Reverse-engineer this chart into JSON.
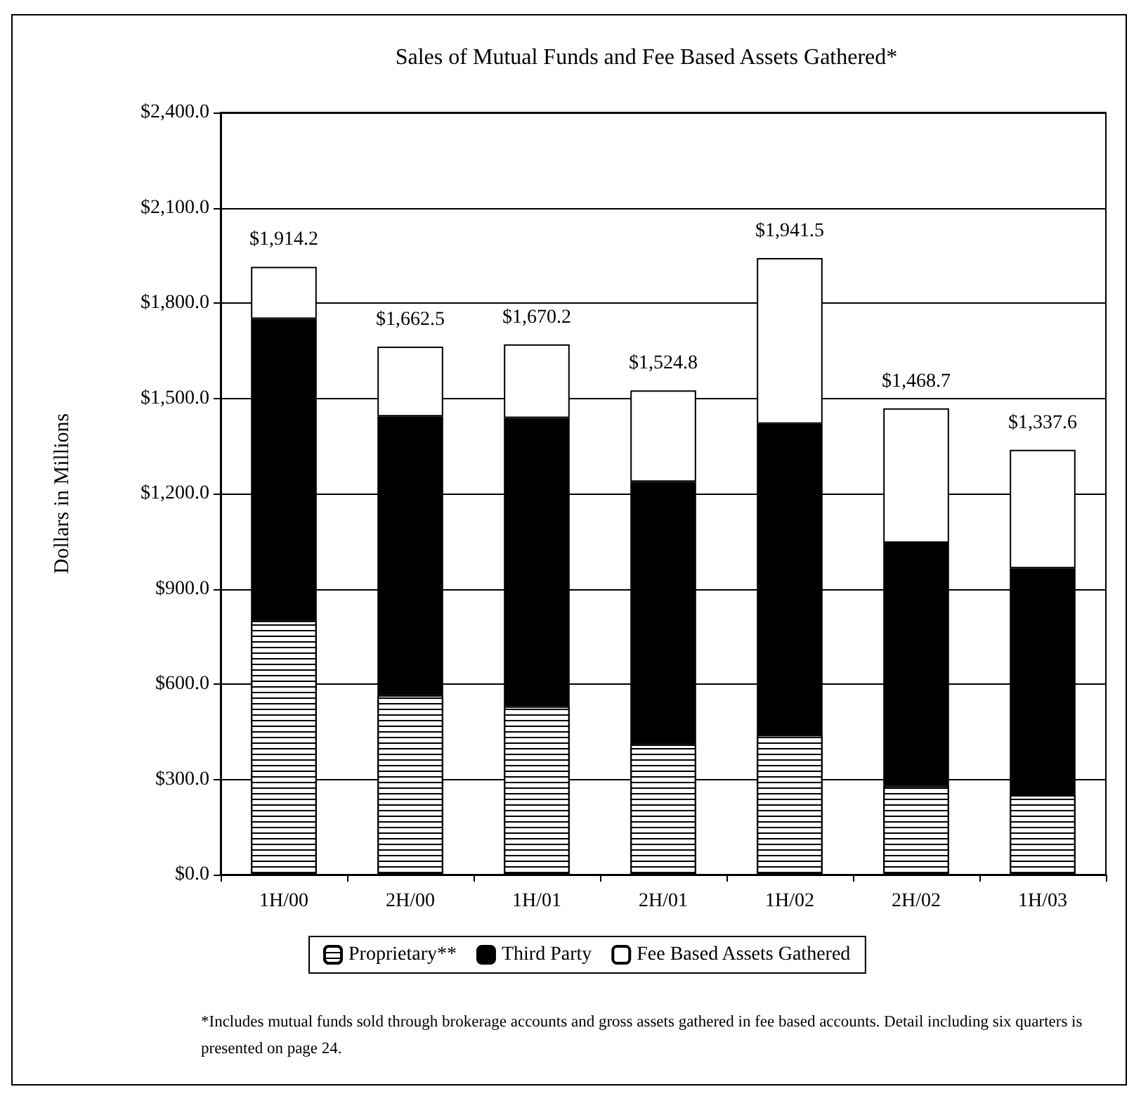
{
  "chart_data": {
    "type": "bar",
    "title": "Sales of Mutual Funds and Fee Based Assets Gathered*",
    "ylabel": "Dollars in Millions",
    "categories": [
      "1H/00",
      "2H/00",
      "1H/01",
      "2H/01",
      "1H/02",
      "2H/02",
      "1H/03"
    ],
    "stacked": true,
    "series": [
      {
        "name": "Proprietary**",
        "color": "#ffffff",
        "values": [
          800,
          565,
          530,
          410,
          440,
          280,
          250
        ]
      },
      {
        "name": "Third Party",
        "color": "#000000",
        "values": [
          950,
          878,
          908,
          827,
          980,
          765,
          715
        ]
      },
      {
        "name": "Fee Based Assets Gathered",
        "color": "#ffffff",
        "values": [
          164.2,
          219.5,
          232.2,
          287.8,
          521.5,
          423.7,
          372.6
        ]
      }
    ],
    "totals": [
      "$1,914.2",
      "$1,662.5",
      "$1,670.2",
      "$1,524.8",
      "$1,941.5",
      "$1,468.7",
      "$1,337.6"
    ],
    "ylim": [
      0,
      2400
    ],
    "yticks": [
      {
        "value": 0,
        "label": "$0.0"
      },
      {
        "value": 300,
        "label": "$300.0"
      },
      {
        "value": 600,
        "label": "$600.0"
      },
      {
        "value": 900,
        "label": "$900.0"
      },
      {
        "value": 1200,
        "label": "$1,200.0"
      },
      {
        "value": 1500,
        "label": "$1,500.0"
      },
      {
        "value": 1800,
        "label": "$1,800.0"
      },
      {
        "value": 2100,
        "label": "$2,100.0"
      },
      {
        "value": 2400,
        "label": "$2,400.0"
      }
    ],
    "grid": "y",
    "legend": "bottom",
    "annotations": [
      "*Includes mutual funds sold through brokerage accounts and gross assets gathered in fee based accounts. Detail including six quarters is presented on page 24."
    ]
  }
}
